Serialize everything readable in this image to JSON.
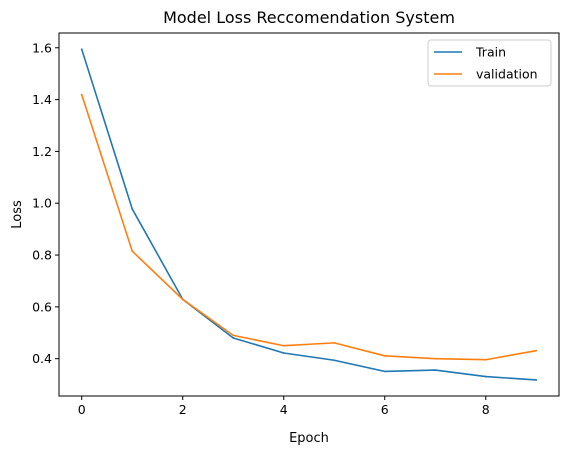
{
  "chart_data": {
    "type": "line",
    "title": "Model Loss Reccomendation System",
    "xlabel": "Epoch",
    "ylabel": "Loss",
    "xlim": [
      -0.45,
      9.45
    ],
    "ylim": [
      0.256,
      1.657
    ],
    "xticks": [
      0,
      2,
      4,
      6,
      8
    ],
    "xtick_labels": [
      "0",
      "2",
      "4",
      "6",
      "8"
    ],
    "yticks": [
      0.4,
      0.6,
      0.8,
      1.0,
      1.2,
      1.4,
      1.6
    ],
    "ytick_labels": [
      "0.4",
      "0.6",
      "0.8",
      "1.0",
      "1.2",
      "1.4",
      "1.6"
    ],
    "x": [
      0,
      1,
      2,
      3,
      4,
      5,
      6,
      7,
      8,
      9
    ],
    "series": [
      {
        "name": "Train",
        "color": "#1f77b4",
        "values": [
          1.594,
          0.978,
          0.629,
          0.48,
          0.422,
          0.394,
          0.351,
          0.356,
          0.331,
          0.318
        ]
      },
      {
        "name": "validation",
        "color": "#ff7f0e",
        "values": [
          1.419,
          0.815,
          0.629,
          0.49,
          0.45,
          0.461,
          0.411,
          0.4,
          0.396,
          0.431
        ]
      }
    ],
    "grid": false,
    "legend_position": "top-right"
  }
}
